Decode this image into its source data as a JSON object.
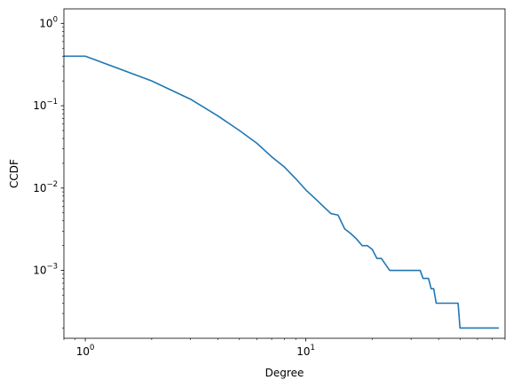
{
  "chart_data": {
    "type": "line",
    "title": "",
    "xlabel": "Degree",
    "ylabel": "CCDF",
    "xscale": "log",
    "yscale": "log",
    "xlim": [
      0.8,
      80
    ],
    "ylim": [
      0.00015,
      1.5
    ],
    "grid": false,
    "x_ticks": [
      {
        "value": 1,
        "base": "10",
        "exp": "0"
      },
      {
        "value": 10,
        "base": "10",
        "exp": "1"
      }
    ],
    "y_ticks": [
      {
        "value": 1,
        "base": "10",
        "exp": "0"
      },
      {
        "value": 0.1,
        "base": "10",
        "exp": "−1"
      },
      {
        "value": 0.01,
        "base": "10",
        "exp": "−2"
      },
      {
        "value": 0.001,
        "base": "10",
        "exp": "−3"
      }
    ],
    "series": [
      {
        "color": "#1f77b4",
        "points": [
          [
            0.8,
            0.4
          ],
          [
            1,
            0.4
          ],
          [
            2,
            0.2
          ],
          [
            3,
            0.12
          ],
          [
            4,
            0.075
          ],
          [
            5,
            0.05
          ],
          [
            6,
            0.035
          ],
          [
            7,
            0.024
          ],
          [
            8,
            0.018
          ],
          [
            9,
            0.013
          ],
          [
            10,
            0.0095
          ],
          [
            11,
            0.0075
          ],
          [
            12,
            0.006
          ],
          [
            13,
            0.0049
          ],
          [
            14,
            0.0047
          ],
          [
            15,
            0.0032
          ],
          [
            16,
            0.0028
          ],
          [
            17,
            0.0024
          ],
          [
            18,
            0.002
          ],
          [
            19,
            0.002
          ],
          [
            20,
            0.0018
          ],
          [
            21,
            0.0014
          ],
          [
            22,
            0.0014
          ],
          [
            24,
            0.001
          ],
          [
            33,
            0.001
          ],
          [
            34,
            0.0008
          ],
          [
            36,
            0.0008
          ],
          [
            37,
            0.0006
          ],
          [
            38,
            0.0006
          ],
          [
            39,
            0.0004
          ],
          [
            49,
            0.0004
          ],
          [
            50,
            0.0002
          ],
          [
            75,
            0.0002
          ]
        ]
      }
    ]
  }
}
